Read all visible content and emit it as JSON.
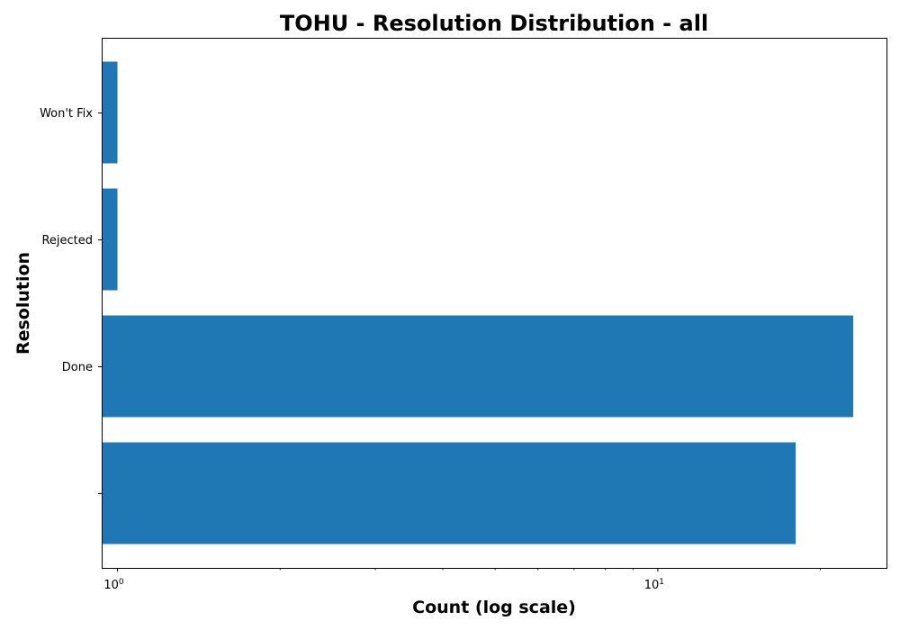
{
  "chart_data": {
    "type": "bar",
    "orientation": "horizontal",
    "title": "TOHU - Resolution Distribution - all",
    "xlabel": "Count (log scale)",
    "ylabel": "Resolution",
    "x_scale": "log",
    "xlim": [
      0.935,
      26.5
    ],
    "categories": [
      "",
      "Done",
      "Rejected",
      "Won't Fix"
    ],
    "values": [
      18,
      23,
      1,
      1
    ],
    "x_ticks": [
      {
        "value": 1,
        "base": "10",
        "exp": "0"
      },
      {
        "value": 10,
        "base": "10",
        "exp": "1"
      }
    ],
    "bar_color": "#1f77b4",
    "grid": false,
    "legend": "none"
  }
}
